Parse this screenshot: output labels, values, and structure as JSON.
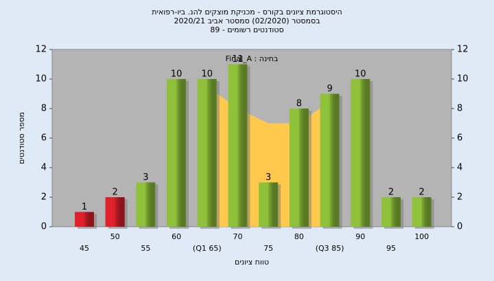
{
  "chart_data": {
    "type": "bar",
    "title": [
      "היסטוגרמת ציונים בקורס - מכניקת מוצקים להנ. ביו-רפואית",
      "בסמסטר  (02/2020)  סמסטר אביב 2020/21",
      "סטודנטים רשומים - 89"
    ],
    "annotation": "Final_A : בחינה",
    "x_label": "טווח ציונים",
    "y_label": "מספר סטודנטים",
    "categories": [
      "45",
      "50",
      "55",
      "60",
      "(Q1 65)",
      "70",
      "75",
      "80",
      "(Q3 85)",
      "90",
      "95",
      "100"
    ],
    "values": [
      1,
      2,
      3,
      10,
      10,
      11,
      3,
      8,
      9,
      10,
      2,
      2
    ],
    "colors": [
      "#e0202a",
      "#e0202a",
      "#8fc23a",
      "#8fc23a",
      "#8fc23a",
      "#8fc23a",
      "#8fc23a",
      "#8fc23a",
      "#8fc23a",
      "#8fc23a",
      "#8fc23a",
      "#8fc23a"
    ],
    "area": {
      "color": "#ffc94d",
      "values": [
        null,
        null,
        null,
        null,
        9.5,
        8,
        7,
        7,
        8.5,
        null,
        null,
        null
      ]
    },
    "ylim": [
      0,
      12
    ],
    "yticks": [
      0,
      2,
      4,
      6,
      8,
      10,
      12
    ],
    "y2lim": [
      0,
      12
    ],
    "y2ticks": [
      0,
      2,
      4,
      6,
      8,
      10,
      12
    ],
    "grid": false
  }
}
